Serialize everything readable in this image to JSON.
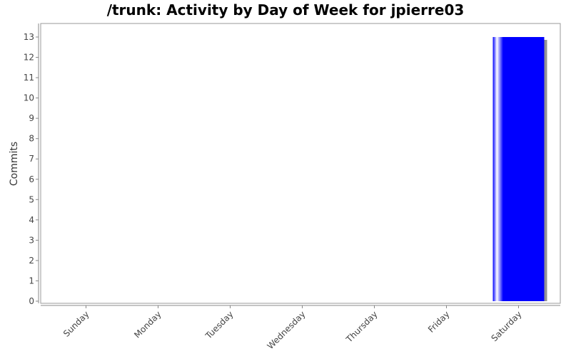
{
  "chart_data": {
    "type": "bar",
    "title": "/trunk: Activity by Day of Week for jpierre03",
    "xlabel": "",
    "ylabel": "Commits",
    "categories": [
      "Sunday",
      "Monday",
      "Tuesday",
      "Wednesday",
      "Thursday",
      "Friday",
      "Saturday"
    ],
    "values": [
      0,
      0,
      0,
      0,
      0,
      0,
      13
    ],
    "ylim": [
      0,
      13
    ],
    "yticks": [
      0,
      1,
      2,
      3,
      4,
      5,
      6,
      7,
      8,
      9,
      10,
      11,
      12,
      13
    ],
    "grid": false,
    "bar_color": "#0000ff",
    "bar_highlight_color": "#ffffff",
    "shadow_color": "#808080"
  }
}
